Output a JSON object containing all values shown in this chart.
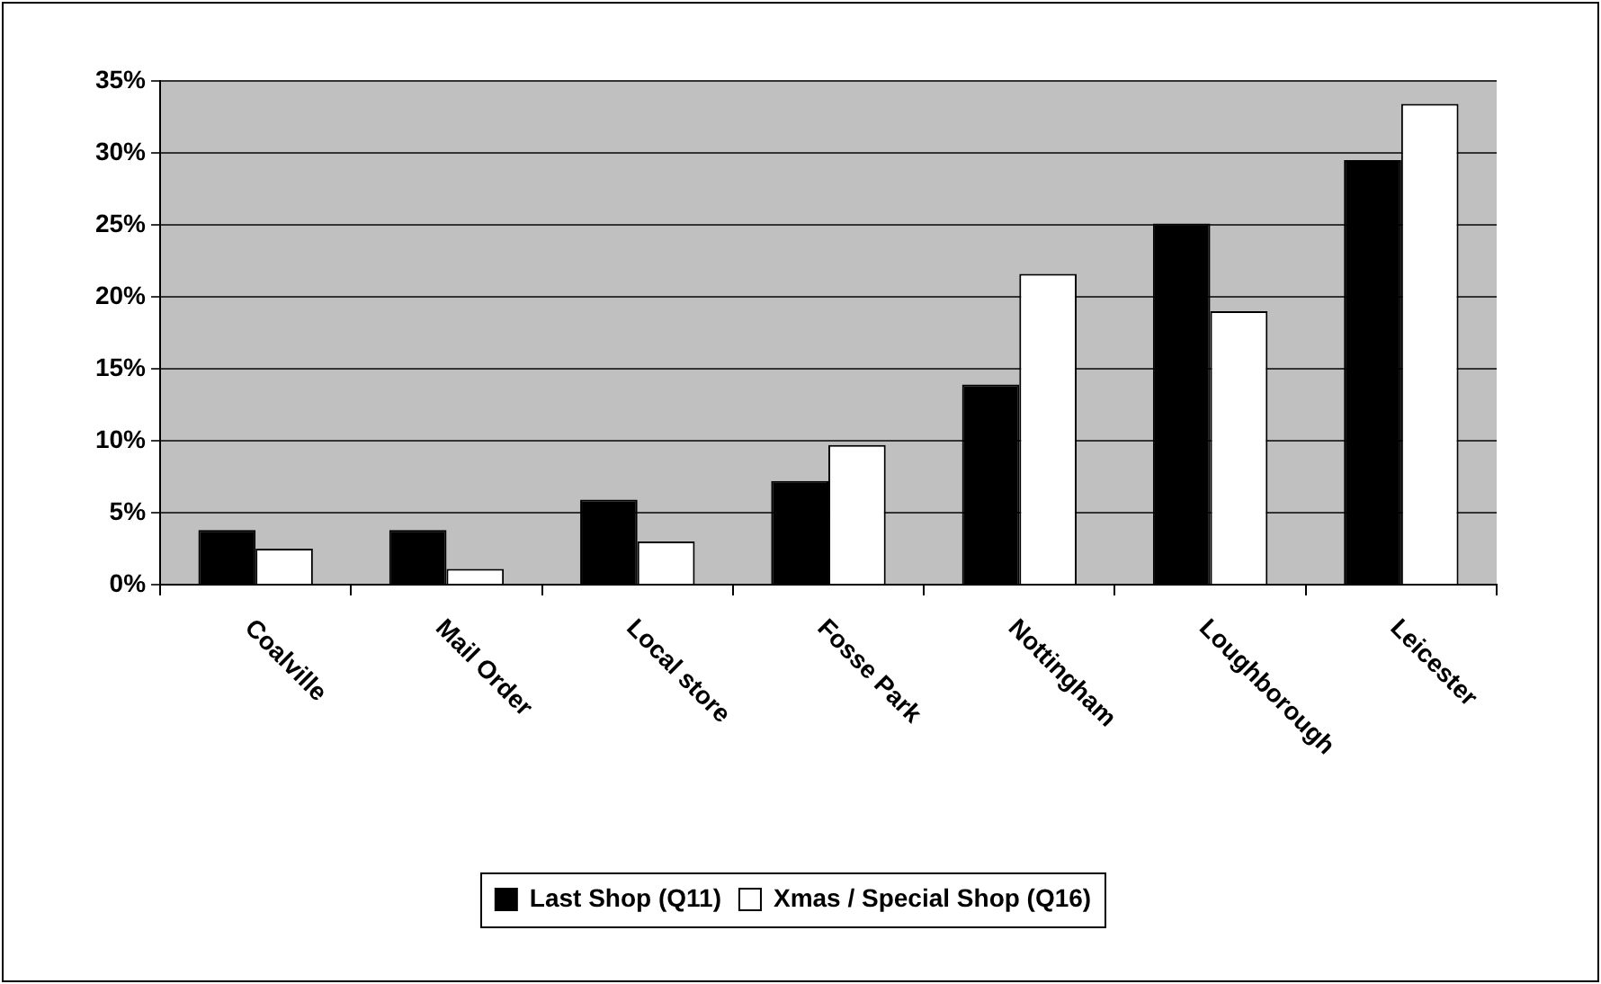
{
  "chart_data": {
    "type": "bar",
    "categories": [
      "Coalville",
      "Mail Order",
      "Local store",
      "Fosse Park",
      "Nottingham",
      "Loughborough",
      "Leicester"
    ],
    "series": [
      {
        "name": "Last Shop (Q11)",
        "color": "#000000",
        "values": [
          3.8,
          3.8,
          5.9,
          7.2,
          13.9,
          25.1,
          29.5
        ]
      },
      {
        "name": "Xmas / Special Shop (Q16)",
        "color": "#ffffff",
        "values": [
          2.5,
          1.1,
          3.0,
          9.7,
          21.6,
          19.0,
          33.4
        ]
      }
    ],
    "ylim": [
      0,
      35
    ],
    "yticks": [
      {
        "value": 0,
        "label": "0%"
      },
      {
        "value": 5,
        "label": "5%"
      },
      {
        "value": 10,
        "label": "10%"
      },
      {
        "value": 15,
        "label": "15%"
      },
      {
        "value": 20,
        "label": "20%"
      },
      {
        "value": 25,
        "label": "25%"
      },
      {
        "value": 30,
        "label": "30%"
      },
      {
        "value": 35,
        "label": "35%"
      }
    ],
    "grid": "y",
    "legend": "bottom"
  }
}
